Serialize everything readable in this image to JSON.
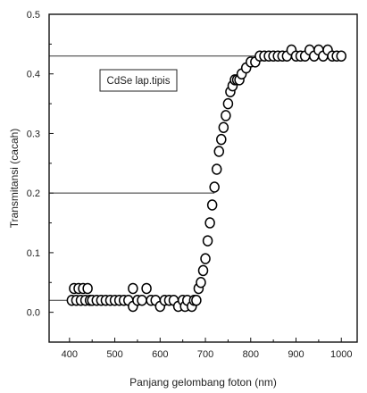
{
  "chart_data": {
    "type": "scatter",
    "xlabel": "Panjang gelombang foton (nm)",
    "ylabel": "Transmitansi (cacah)",
    "xlim": [
      355,
      1035
    ],
    "ylim": [
      -0.05,
      0.5
    ],
    "xticks": [
      "400",
      "500",
      "600",
      "700",
      "800",
      "900",
      "1000"
    ],
    "yticks": [
      "0.0",
      "0.1",
      "0.2",
      "0.3",
      "0.4",
      "0.5"
    ],
    "legend": {
      "text": "CdSe lap.tipis",
      "placement": "top-left"
    },
    "grid": false,
    "reference_lines": [
      {
        "x_from": 355,
        "x_to": 720,
        "y": 0.2
      },
      {
        "x_from": 355,
        "x_to": 820,
        "y": 0.43
      },
      {
        "x_from": 355,
        "x_to": 685,
        "y": 0.02
      }
    ],
    "series": [
      {
        "marker": "open-circle",
        "color": "#000000",
        "points": [
          [
            405,
            0.02
          ],
          [
            410,
            0.04
          ],
          [
            415,
            0.02
          ],
          [
            420,
            0.04
          ],
          [
            425,
            0.02
          ],
          [
            430,
            0.04
          ],
          [
            435,
            0.02
          ],
          [
            440,
            0.04
          ],
          [
            445,
            0.02
          ],
          [
            450,
            0.02
          ],
          [
            460,
            0.02
          ],
          [
            470,
            0.02
          ],
          [
            480,
            0.02
          ],
          [
            490,
            0.02
          ],
          [
            500,
            0.02
          ],
          [
            510,
            0.02
          ],
          [
            520,
            0.02
          ],
          [
            530,
            0.02
          ],
          [
            540,
            0.04
          ],
          [
            540,
            0.01
          ],
          [
            550,
            0.02
          ],
          [
            560,
            0.02
          ],
          [
            570,
            0.04
          ],
          [
            580,
            0.02
          ],
          [
            590,
            0.02
          ],
          [
            600,
            0.01
          ],
          [
            610,
            0.02
          ],
          [
            620,
            0.02
          ],
          [
            630,
            0.02
          ],
          [
            640,
            0.01
          ],
          [
            650,
            0.02
          ],
          [
            655,
            0.01
          ],
          [
            660,
            0.02
          ],
          [
            670,
            0.01
          ],
          [
            675,
            0.02
          ],
          [
            680,
            0.02
          ],
          [
            685,
            0.04
          ],
          [
            690,
            0.05
          ],
          [
            695,
            0.07
          ],
          [
            700,
            0.09
          ],
          [
            705,
            0.12
          ],
          [
            710,
            0.15
          ],
          [
            715,
            0.18
          ],
          [
            720,
            0.21
          ],
          [
            725,
            0.24
          ],
          [
            730,
            0.27
          ],
          [
            735,
            0.29
          ],
          [
            740,
            0.31
          ],
          [
            745,
            0.33
          ],
          [
            750,
            0.35
          ],
          [
            755,
            0.37
          ],
          [
            760,
            0.38
          ],
          [
            765,
            0.39
          ],
          [
            770,
            0.39
          ],
          [
            775,
            0.39
          ],
          [
            780,
            0.4
          ],
          [
            790,
            0.41
          ],
          [
            800,
            0.42
          ],
          [
            810,
            0.42
          ],
          [
            820,
            0.43
          ],
          [
            830,
            0.43
          ],
          [
            840,
            0.43
          ],
          [
            850,
            0.43
          ],
          [
            860,
            0.43
          ],
          [
            870,
            0.43
          ],
          [
            880,
            0.43
          ],
          [
            890,
            0.44
          ],
          [
            900,
            0.43
          ],
          [
            910,
            0.43
          ],
          [
            920,
            0.43
          ],
          [
            930,
            0.44
          ],
          [
            940,
            0.43
          ],
          [
            950,
            0.44
          ],
          [
            960,
            0.43
          ],
          [
            970,
            0.44
          ],
          [
            980,
            0.43
          ],
          [
            990,
            0.43
          ],
          [
            1000,
            0.43
          ]
        ]
      }
    ]
  }
}
